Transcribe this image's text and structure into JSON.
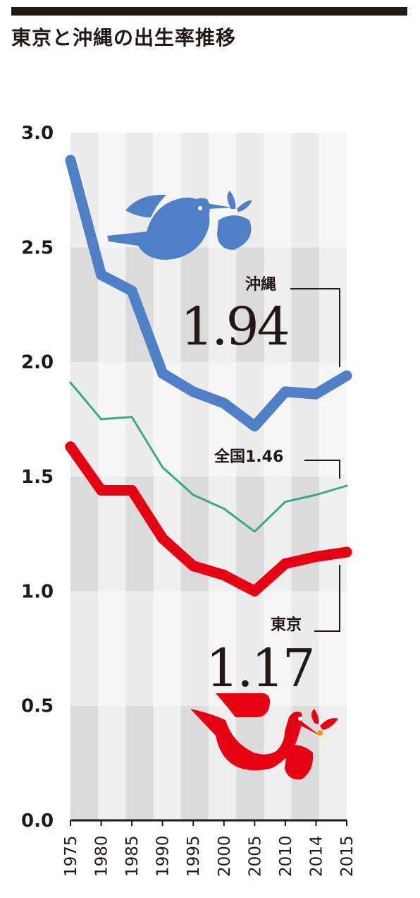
{
  "title": "東京と沖縄の出生率推移",
  "colors": {
    "okinawa": "#4f7fc6",
    "national": "#3aa88c",
    "tokyo": "#e60012",
    "band_dark": "#dcdbdb",
    "band_light": "#ececec",
    "axis": "#231815"
  },
  "icons": {
    "okinawa": "stork-icon",
    "tokyo": "stork-icon"
  },
  "chart_data": {
    "type": "line",
    "title": "東京と沖縄の出生率推移",
    "x": [
      "1975",
      "1980",
      "1985",
      "1990",
      "1995",
      "2000",
      "2005",
      "2010",
      "2014",
      "2015"
    ],
    "ylim": [
      0,
      3.0
    ],
    "yticks": [
      "0.0",
      "0.5",
      "1.0",
      "1.5",
      "2.0",
      "2.5",
      "3.0"
    ],
    "series": [
      {
        "name": "沖縄",
        "values": [
          2.88,
          2.38,
          2.31,
          1.95,
          1.87,
          1.82,
          1.72,
          1.87,
          1.86,
          1.94
        ],
        "color": "#4f7fc6",
        "label": "沖縄",
        "value_label": "1.94"
      },
      {
        "name": "全国",
        "values": [
          1.91,
          1.75,
          1.76,
          1.54,
          1.42,
          1.36,
          1.26,
          1.39,
          1.42,
          1.46
        ],
        "color": "#3aa88c",
        "label": "全国1.46"
      },
      {
        "name": "東京",
        "values": [
          1.63,
          1.44,
          1.44,
          1.23,
          1.11,
          1.07,
          1.0,
          1.12,
          1.15,
          1.17
        ],
        "color": "#e60012",
        "label": "東京",
        "value_label": "1.17"
      }
    ],
    "grid": "alternating-bands"
  }
}
